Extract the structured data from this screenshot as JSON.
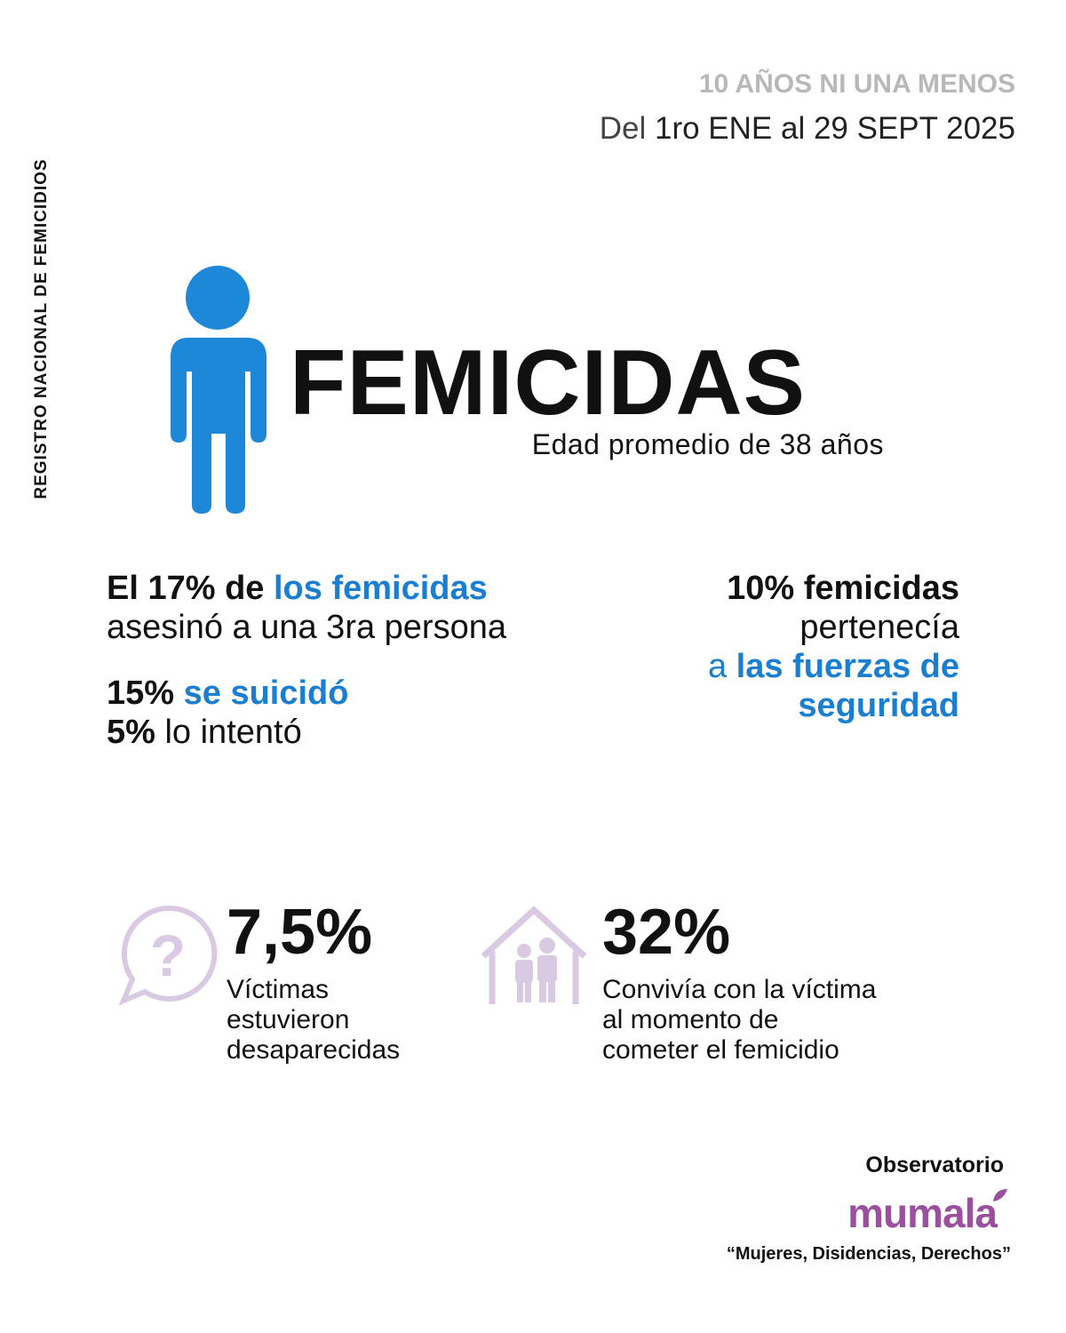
{
  "side_label": "REGISTRO NACIONAL DE FEMICIDIOS",
  "header": {
    "kicker": "10 AÑOS NI UNA MENOS",
    "date_prefix": "Del",
    "date": "1ro ENE al 29 SEPT 2025"
  },
  "hero": {
    "title": "FEMICIDAS",
    "subtitle": "Edad promedio de 38 años"
  },
  "third_person": {
    "lead": "El 17% de",
    "highlight": "los femicidas",
    "rest": "asesinó a una 3ra persona"
  },
  "suicide": {
    "value": "15%",
    "text": "se suicidó",
    "attempt_value": "5%",
    "attempt_text": "lo intentó"
  },
  "security": {
    "lead": "10% femicidas",
    "line2": "pertenecía",
    "prep": "a",
    "highlight": "las fuerzas de",
    "highlight2": "seguridad"
  },
  "missing": {
    "value": "7,5%",
    "label": [
      "Víctimas",
      "estuvieron",
      "desaparecidas"
    ]
  },
  "cohabit": {
    "value": "32%",
    "label": [
      "Convivía con la víctima",
      "al momento de",
      "cometer el femicidio"
    ]
  },
  "footer": {
    "observatory": "Observatorio",
    "logo": "mumala",
    "tagline": "“Mujeres, Disidencias, Derechos”"
  }
}
